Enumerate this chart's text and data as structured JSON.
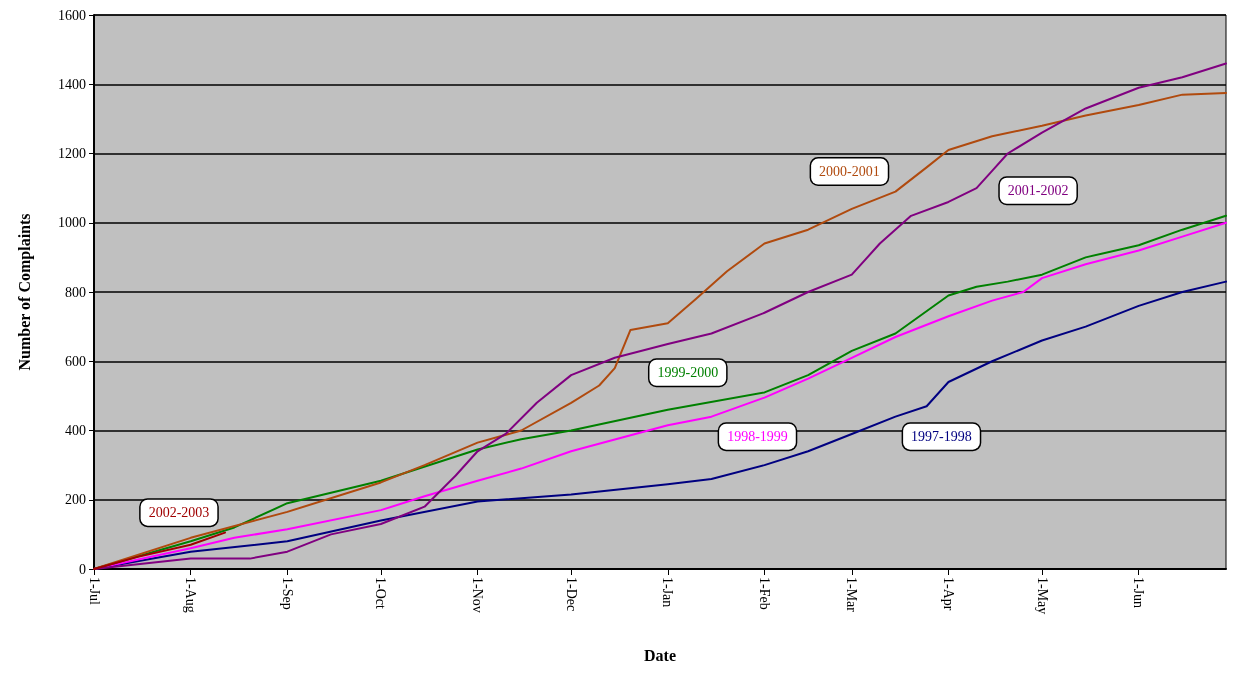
{
  "chart_data": {
    "type": "line",
    "xlabel": "Date",
    "ylabel": "Number of Complaints",
    "xlim": [
      "2001-07-01",
      "2002-06-29"
    ],
    "xticks": [
      {
        "value": "2001-07-01",
        "label": "1-Jul"
      },
      {
        "value": "2001-08-01",
        "label": "1-Aug"
      },
      {
        "value": "2001-09-01",
        "label": "1-Sep"
      },
      {
        "value": "2001-10-01",
        "label": "1-Oct"
      },
      {
        "value": "2001-11-01",
        "label": "1-Nov"
      },
      {
        "value": "2001-12-01",
        "label": "1-Dec"
      },
      {
        "value": "2002-01-01",
        "label": "1-Jan"
      },
      {
        "value": "2002-02-01",
        "label": "1-Feb"
      },
      {
        "value": "2002-03-01",
        "label": "1-Mar"
      },
      {
        "value": "2002-04-01",
        "label": "1-Apr"
      },
      {
        "value": "2002-05-01",
        "label": "1-May"
      },
      {
        "value": "2002-06-01",
        "label": "1-Jun"
      }
    ],
    "ylim": [
      0,
      1600
    ],
    "yticks": [
      0,
      200,
      400,
      600,
      800,
      1000,
      1200,
      1400,
      1600
    ],
    "grid": "y",
    "marker": "none",
    "line_style": "solid",
    "series": [
      {
        "name": "1997-1998",
        "color": "#000080",
        "x": [
          "2001-07-01",
          "2001-08-01",
          "2001-09-01",
          "2001-10-01",
          "2001-11-01",
          "2001-12-01",
          "2002-01-01",
          "2002-01-15",
          "2002-02-01",
          "2002-02-15",
          "2002-03-01",
          "2002-03-15",
          "2002-03-25",
          "2002-04-01",
          "2002-04-15",
          "2002-05-01",
          "2002-05-15",
          "2002-06-01",
          "2002-06-15",
          "2002-06-29"
        ],
        "values": [
          0,
          50,
          80,
          140,
          195,
          215,
          245,
          260,
          300,
          340,
          390,
          440,
          470,
          540,
          600,
          660,
          700,
          760,
          800,
          830
        ]
      },
      {
        "name": "1998-1999",
        "color": "#ff00ff",
        "x": [
          "2001-07-01",
          "2001-08-01",
          "2001-08-15",
          "2001-09-01",
          "2001-10-01",
          "2001-10-15",
          "2001-11-01",
          "2001-11-15",
          "2001-12-01",
          "2002-01-01",
          "2002-01-15",
          "2002-02-01",
          "2002-02-15",
          "2002-03-01",
          "2002-03-15",
          "2002-04-01",
          "2002-04-15",
          "2002-04-25",
          "2002-05-01",
          "2002-05-15",
          "2002-06-01",
          "2002-06-15",
          "2002-06-29"
        ],
        "values": [
          0,
          60,
          90,
          115,
          170,
          210,
          255,
          290,
          340,
          415,
          440,
          495,
          550,
          610,
          670,
          730,
          775,
          800,
          840,
          880,
          920,
          960,
          1000
        ]
      },
      {
        "name": "1999-2000",
        "color": "#008000",
        "x": [
          "2001-07-01",
          "2001-08-01",
          "2001-08-15",
          "2001-09-01",
          "2001-10-01",
          "2001-11-01",
          "2001-11-15",
          "2001-12-01",
          "2002-01-01",
          "2002-02-01",
          "2002-02-15",
          "2002-03-01",
          "2002-03-15",
          "2002-04-01",
          "2002-04-10",
          "2002-04-20",
          "2002-05-01",
          "2002-05-15",
          "2002-06-01",
          "2002-06-15",
          "2002-06-29"
        ],
        "values": [
          0,
          80,
          120,
          190,
          255,
          345,
          375,
          400,
          460,
          510,
          560,
          630,
          680,
          790,
          815,
          830,
          850,
          900,
          935,
          980,
          1020
        ]
      },
      {
        "name": "2000-2001",
        "color": "#b04a0e",
        "x": [
          "2001-07-01",
          "2001-08-01",
          "2001-09-01",
          "2001-10-01",
          "2001-10-15",
          "2001-11-01",
          "2001-11-15",
          "2001-12-01",
          "2001-12-10",
          "2001-12-15",
          "2001-12-20",
          "2002-01-01",
          "2002-01-10",
          "2002-01-20",
          "2002-02-01",
          "2002-02-15",
          "2002-03-01",
          "2002-03-15",
          "2002-03-25",
          "2002-04-01",
          "2002-04-15",
          "2002-05-01",
          "2002-05-15",
          "2002-06-01",
          "2002-06-15",
          "2002-06-29"
        ],
        "values": [
          0,
          90,
          165,
          250,
          300,
          365,
          400,
          480,
          530,
          580,
          690,
          710,
          780,
          860,
          940,
          980,
          1040,
          1090,
          1160,
          1210,
          1250,
          1280,
          1310,
          1340,
          1370,
          1375
        ]
      },
      {
        "name": "2001-2002",
        "color": "#800080",
        "x": [
          "2001-07-01",
          "2001-08-01",
          "2001-08-20",
          "2001-09-01",
          "2001-09-15",
          "2001-10-01",
          "2001-10-15",
          "2001-10-25",
          "2001-11-01",
          "2001-11-10",
          "2001-11-20",
          "2001-12-01",
          "2001-12-15",
          "2002-01-01",
          "2002-01-15",
          "2002-02-01",
          "2002-02-15",
          "2002-03-01",
          "2002-03-10",
          "2002-03-20",
          "2002-04-01",
          "2002-04-10",
          "2002-04-15",
          "2002-04-20",
          "2002-05-01",
          "2002-05-15",
          "2002-06-01",
          "2002-06-15",
          "2002-06-29"
        ],
        "values": [
          0,
          30,
          30,
          50,
          100,
          130,
          180,
          270,
          340,
          390,
          480,
          560,
          610,
          650,
          680,
          740,
          800,
          850,
          940,
          1020,
          1060,
          1100,
          1150,
          1200,
          1260,
          1330,
          1390,
          1420,
          1460
        ]
      },
      {
        "name": "2002-2003",
        "color": "#a00000",
        "x": [
          "2001-07-01",
          "2001-07-15",
          "2001-08-01",
          "2001-08-12"
        ],
        "values": [
          0,
          35,
          70,
          105
        ]
      }
    ]
  }
}
